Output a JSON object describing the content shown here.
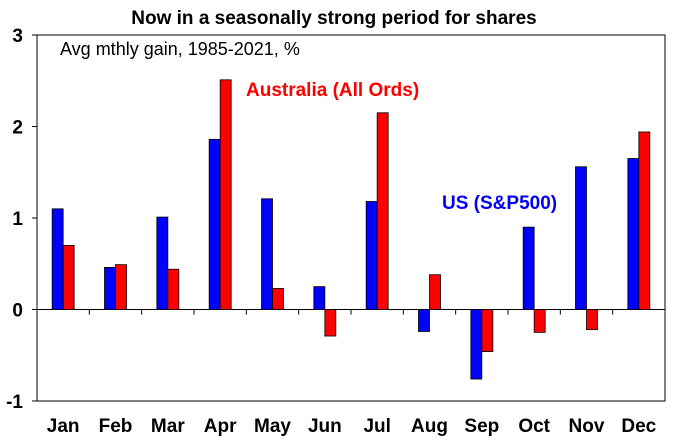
{
  "chart_data": {
    "type": "bar",
    "title": "Now in a seasonally strong period for shares",
    "subtitle": "Avg mthly gain, 1985-2021, %",
    "categories": [
      "Jan",
      "Feb",
      "Mar",
      "Apr",
      "May",
      "Jun",
      "Jul",
      "Aug",
      "Sep",
      "Oct",
      "Nov",
      "Dec"
    ],
    "series": [
      {
        "name": "US (S&P500)",
        "color": "#0000ff",
        "values": [
          1.1,
          0.46,
          1.01,
          1.86,
          1.21,
          0.25,
          1.18,
          -0.24,
          -0.76,
          0.9,
          1.56,
          1.65
        ]
      },
      {
        "name": "Australia (All Ords)",
        "color": "#ff0000",
        "values": [
          0.7,
          0.49,
          0.44,
          2.51,
          0.23,
          -0.29,
          2.15,
          0.38,
          -0.46,
          -0.25,
          -0.22,
          1.94
        ]
      }
    ],
    "yticks": [
      "3",
      "2",
      "1",
      "0",
      "-1"
    ],
    "ylim": [
      -1,
      3
    ],
    "xlabel": "",
    "ylabel": "",
    "grid": false,
    "annotations": [
      {
        "text": "Australia (All Ords)",
        "color": "#ff0000"
      },
      {
        "text": "US (S&P500)",
        "color": "#0000ff"
      }
    ]
  }
}
